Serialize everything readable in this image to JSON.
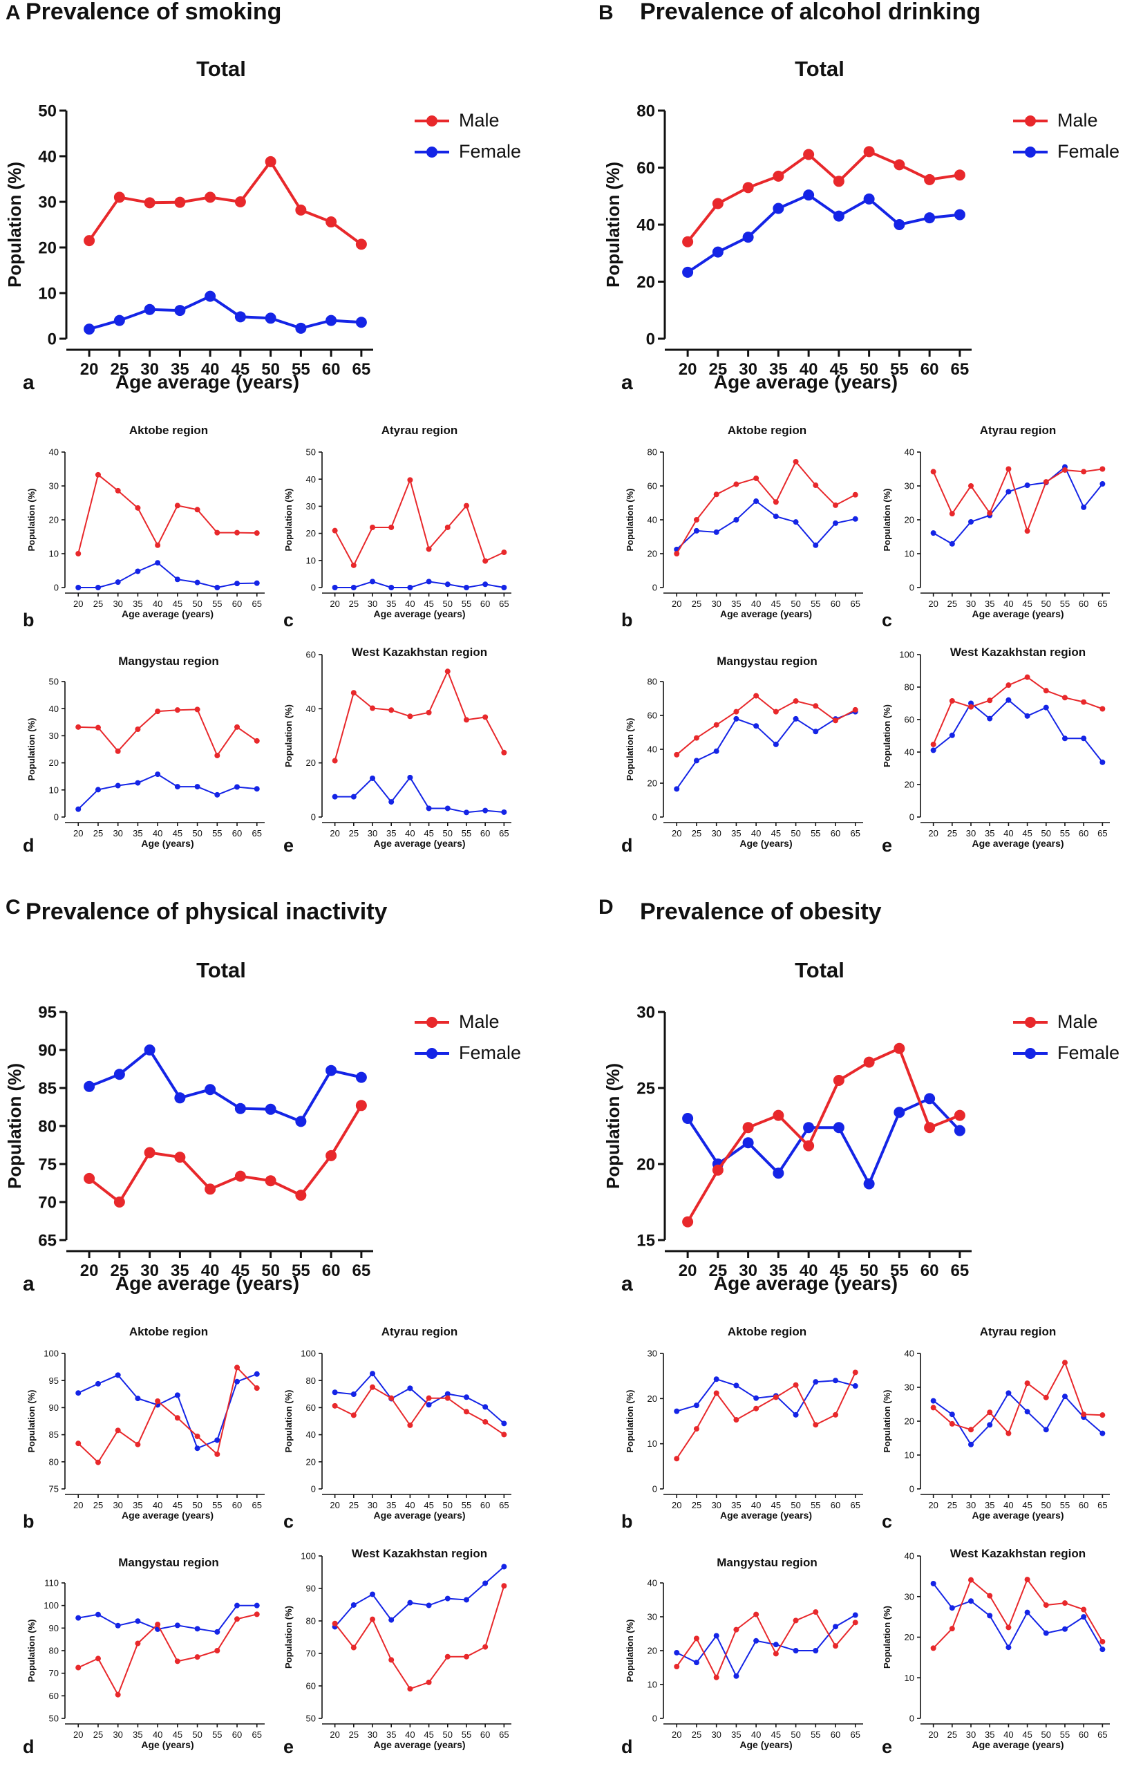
{
  "figure": {
    "panels": [
      {
        "letter": "A",
        "title": "Prevalence of smoking",
        "charts": [
          {
            "size": "big",
            "tag": "a",
            "title": "Total",
            "xlabel": "Age average (years)",
            "ylabel": "Population (%)",
            "ylim": [
              0,
              50
            ],
            "yticks": [
              0,
              10,
              20,
              30,
              40,
              50
            ],
            "legend": {
              "male": "Male",
              "female": "Female"
            },
            "male": [
              21.5,
              31,
              29.8,
              29.9,
              31,
              30,
              38.8,
              28.2,
              25.6,
              20.7
            ],
            "female": [
              2.1,
              4,
              6.4,
              6.2,
              9.3,
              4.8,
              4.5,
              2.3,
              4,
              3.6
            ]
          },
          {
            "size": "small",
            "tag": "b",
            "title": "Aktobe region",
            "xlabel": "Age average (years)",
            "ylabel": "Population (%)",
            "ylim": [
              0,
              40
            ],
            "yticks": [
              0,
              10,
              20,
              30,
              40
            ],
            "male": [
              10,
              33.3,
              28.6,
              23.5,
              12.5,
              24.2,
              23,
              16.2,
              16.2,
              16.1
            ],
            "female": [
              0,
              0,
              1.6,
              4.8,
              7.3,
              2.4,
              1.5,
              0,
              1.2,
              1.3
            ]
          },
          {
            "size": "small",
            "tag": "c",
            "title": "Atyrau region",
            "xlabel": "Age average (years)",
            "ylabel": "Population (%)",
            "ylim": [
              0,
              50
            ],
            "yticks": [
              0,
              10,
              20,
              30,
              40,
              50
            ],
            "male": [
              21,
              8.2,
              22.2,
              22.2,
              39.7,
              14.2,
              22.2,
              30.2,
              9.8,
              13
            ],
            "female": [
              0,
              0,
              2.2,
              0,
              0,
              2.2,
              1.2,
              0,
              1.2,
              0
            ]
          },
          {
            "size": "small",
            "tag": "d",
            "title": "Mangystau region",
            "xlabel": "Age (years)",
            "ylabel": "Population (%)",
            "ylim": [
              0,
              50
            ],
            "yticks": [
              0,
              10,
              20,
              30,
              40,
              50
            ],
            "male": [
              33.2,
              33,
              24.3,
              32.4,
              39,
              39.5,
              39.7,
              22.7,
              33.2,
              28.1
            ],
            "female": [
              2.9,
              10.1,
              11.6,
              12.6,
              15.8,
              11.2,
              11.2,
              8.2,
              11.1,
              10.4
            ]
          },
          {
            "size": "small",
            "tag": "e",
            "title": "West Kazakhstan region",
            "xlabel": "Age average (years)",
            "ylabel": "Population (%)",
            "ylim": [
              0,
              60
            ],
            "yticks": [
              0,
              20,
              40,
              60
            ],
            "male": [
              20.8,
              45.9,
              40.2,
              39.5,
              37.2,
              38.6,
              53.8,
              35.9,
              36.9,
              23.8
            ],
            "female": [
              7.5,
              7.5,
              14.3,
              5.6,
              14.6,
              3.2,
              3.2,
              1.7,
              2.4,
              1.8
            ]
          }
        ]
      },
      {
        "letter": "B",
        "title": "Prevalence of alcohol drinking",
        "charts": [
          {
            "size": "big",
            "tag": "a",
            "title": "Total",
            "xlabel": "Age average (years)",
            "ylabel": "Population (%)",
            "ylim": [
              0,
              80
            ],
            "yticks": [
              0,
              20,
              40,
              60,
              80
            ],
            "legend": {
              "male": "Male",
              "female": "Female"
            },
            "male": [
              34,
              47.4,
              53,
              57,
              64.6,
              55.2,
              65.6,
              61,
              55.8,
              57.4
            ],
            "female": [
              23.3,
              30.4,
              35.6,
              45.7,
              50.4,
              43,
              49,
              40,
              42.4,
              43.5
            ]
          },
          {
            "size": "small",
            "tag": "b",
            "title": "Aktobe region",
            "xlabel": "Age average (years)",
            "ylabel": "Population (%)",
            "ylim": [
              0,
              80
            ],
            "yticks": [
              0,
              20,
              40,
              60,
              80
            ],
            "male": [
              20,
              40,
              55,
              61,
              64.5,
              50.5,
              74.3,
              60.4,
              48.6,
              54.8
            ],
            "female": [
              22.5,
              33.5,
              32.7,
              40,
              51,
              42,
              38.7,
              25,
              38,
              40.5
            ]
          },
          {
            "size": "small",
            "tag": "c",
            "title": "Atyrau region",
            "xlabel": "Age average (years)",
            "ylabel": "Population (%)",
            "ylim": [
              0,
              40
            ],
            "yticks": [
              0,
              10,
              20,
              30,
              40
            ],
            "male": [
              34.2,
              21.8,
              30,
              22,
              35,
              16.7,
              31.2,
              34.7,
              34.2,
              35
            ],
            "female": [
              16.1,
              12.9,
              19.4,
              21.3,
              28.3,
              30.2,
              31,
              35.6,
              23.7,
              30.6
            ]
          },
          {
            "size": "small",
            "tag": "d",
            "title": "Mangystau region",
            "xlabel": "Age (years)",
            "ylabel": "Population (%)",
            "ylim": [
              0,
              80
            ],
            "yticks": [
              0,
              20,
              40,
              60,
              80
            ],
            "male": [
              36.8,
              46.7,
              54.4,
              62.2,
              71.6,
              62.2,
              68.5,
              65.6,
              57,
              63.3
            ],
            "female": [
              16.6,
              33.3,
              38.9,
              58,
              53.8,
              42.9,
              58,
              50.5,
              57.9,
              62.2
            ]
          },
          {
            "size": "small",
            "tag": "e",
            "title": "West Kazakhstan region",
            "xlabel": "Age average (years)",
            "ylabel": "Population (%)",
            "ylim": [
              0,
              100
            ],
            "yticks": [
              0,
              20,
              40,
              60,
              80,
              100
            ],
            "male": [
              44.7,
              71.5,
              67.8,
              71.8,
              81.2,
              86.1,
              77.8,
              73.5,
              70.8,
              66.6
            ],
            "female": [
              41.1,
              50.3,
              70,
              60.6,
              72,
              62.2,
              67.4,
              48.4,
              48.4,
              33.7
            ]
          }
        ]
      },
      {
        "letter": "C",
        "title": "Prevalence of physical inactivity",
        "charts": [
          {
            "size": "big",
            "tag": "a",
            "title": "Total",
            "xlabel": "Age average (years)",
            "ylabel": "Population (%)",
            "ylim": [
              65,
              95
            ],
            "yticks": [
              65,
              70,
              75,
              80,
              85,
              90,
              95
            ],
            "legend": {
              "male": "Male",
              "female": "Female"
            },
            "male": [
              73.1,
              70,
              76.5,
              75.9,
              71.7,
              73.4,
              72.8,
              70.9,
              76.1,
              82.7
            ],
            "female": [
              85.2,
              86.8,
              90,
              83.7,
              84.8,
              82.3,
              82.2,
              80.6,
              87.3,
              86.4
            ]
          },
          {
            "size": "small",
            "tag": "b",
            "title": "Aktobe region",
            "xlabel": "Age average (years)",
            "ylabel": "Population (%)",
            "ylim": [
              75,
              100
            ],
            "yticks": [
              75,
              80,
              85,
              90,
              95,
              100
            ],
            "male": [
              83.4,
              79.9,
              85.8,
              83.2,
              91.2,
              88.1,
              84.7,
              81.4,
              97.4,
              93.6
            ],
            "female": [
              92.7,
              94.4,
              96,
              91.7,
              90.5,
              92.3,
              82.5,
              84,
              94.8,
              96.2
            ]
          },
          {
            "size": "small",
            "tag": "c",
            "title": "Atyrau region",
            "xlabel": "Age average (years)",
            "ylabel": "Population (%)",
            "ylim": [
              0,
              100
            ],
            "yticks": [
              0,
              20,
              40,
              60,
              80,
              100
            ],
            "male": [
              61.3,
              54.4,
              75.1,
              67,
              47,
              67,
              67,
              57,
              49.5,
              40.1
            ],
            "female": [
              71.3,
              69.9,
              85.1,
              66.6,
              74.3,
              62.1,
              70.1,
              67.7,
              60.5,
              48.3
            ]
          },
          {
            "size": "small",
            "tag": "d",
            "title": "Mangystau region",
            "xlabel": "Age (years)",
            "ylabel": "Population (%)",
            "ylim": [
              50,
              110
            ],
            "yticks": [
              50,
              60,
              70,
              80,
              90,
              100,
              110
            ],
            "male": [
              72.5,
              76.5,
              60.5,
              83.2,
              91.6,
              75.3,
              77.2,
              80,
              94,
              96.1
            ],
            "female": [
              94.5,
              96,
              91.1,
              93.1,
              89.5,
              91.2,
              89.7,
              88.3,
              100,
              100
            ]
          },
          {
            "size": "small",
            "tag": "e",
            "title": "West Kazakhstan region",
            "xlabel": "Age average (years)",
            "ylabel": "Population (%)",
            "ylim": [
              50,
              100
            ],
            "yticks": [
              50,
              60,
              70,
              80,
              90,
              100
            ],
            "male": [
              79.2,
              71.8,
              80.5,
              68,
              59.1,
              61.1,
              69,
              69,
              72,
              90.8
            ],
            "female": [
              78.2,
              84.9,
              88.2,
              80.3,
              85.6,
              84.8,
              86.9,
              86.5,
              91.6,
              96.7
            ]
          }
        ]
      },
      {
        "letter": "D",
        "title": "Prevalence of obesity",
        "charts": [
          {
            "size": "big",
            "tag": "a",
            "title": "Total",
            "xlabel": "Age average (years)",
            "ylabel": "Population (%)",
            "ylim": [
              15,
              30
            ],
            "yticks": [
              15,
              20,
              25,
              30
            ],
            "legend": {
              "male": "Male",
              "female": "Female"
            },
            "male": [
              16.2,
              19.6,
              22.4,
              23.2,
              21.2,
              25.5,
              26.7,
              27.6,
              22.4,
              23.2
            ],
            "female": [
              23,
              20,
              21.4,
              19.4,
              22.4,
              22.4,
              18.7,
              23.4,
              24.3,
              22.2
            ]
          },
          {
            "size": "small",
            "tag": "b",
            "title": "Aktobe region",
            "xlabel": "Age average (years)",
            "ylabel": "Population (%)",
            "ylim": [
              0,
              30
            ],
            "yticks": [
              0,
              10,
              20,
              30
            ],
            "male": [
              6.7,
              13.3,
              21.2,
              15.3,
              17.8,
              20.3,
              23,
              14.2,
              16.4,
              25.8
            ],
            "female": [
              17.2,
              18.5,
              24.3,
              22.9,
              20.1,
              20.6,
              16.4,
              23.7,
              24,
              22.8
            ]
          },
          {
            "size": "small",
            "tag": "c",
            "title": "Atyrau region",
            "xlabel": "Age average (years)",
            "ylabel": "Population (%)",
            "ylim": [
              0,
              40
            ],
            "yticks": [
              0,
              10,
              20,
              30,
              40
            ],
            "male": [
              24,
              19.2,
              17.5,
              22.6,
              16.4,
              31.2,
              27,
              37.3,
              22,
              21.8
            ],
            "female": [
              26,
              22,
              13.1,
              18.9,
              28.3,
              22.8,
              17.5,
              27.3,
              21.2,
              16.4
            ]
          },
          {
            "size": "small",
            "tag": "d",
            "title": "Mangystau region",
            "xlabel": "Age (years)",
            "ylabel": "Population (%)",
            "ylim": [
              0,
              40
            ],
            "yticks": [
              0,
              10,
              20,
              30,
              40
            ],
            "male": [
              15.3,
              23.6,
              12.1,
              26.2,
              30.7,
              19.1,
              28.9,
              31.4,
              21.4,
              28.3
            ],
            "female": [
              19.4,
              16.5,
              24.4,
              12.5,
              22.9,
              21.8,
              20,
              20,
              27.1,
              30.5
            ]
          },
          {
            "size": "small",
            "tag": "e",
            "title": "West Kazakhstan region",
            "xlabel": "Age average (years)",
            "ylabel": "Population (%)",
            "ylim": [
              0,
              40
            ],
            "yticks": [
              0,
              10,
              20,
              30,
              40
            ],
            "male": [
              17.3,
              22.1,
              34.1,
              30.2,
              22.4,
              34.2,
              27.9,
              28.4,
              26.8,
              18.9
            ],
            "female": [
              33.2,
              27.2,
              28.9,
              25.3,
              17.5,
              26.1,
              21,
              22,
              25,
              17
            ]
          }
        ]
      }
    ]
  },
  "chart_data": {
    "type": "line",
    "x": [
      20,
      25,
      30,
      35,
      40,
      45,
      50,
      55,
      60,
      65
    ],
    "series_names": [
      "Male",
      "Female"
    ],
    "colors": {
      "male": "#e8282b",
      "female": "#1424e6"
    },
    "note": "Each sub-chart in figure.panels[].charts[] holds male and female series over the shared x values."
  }
}
